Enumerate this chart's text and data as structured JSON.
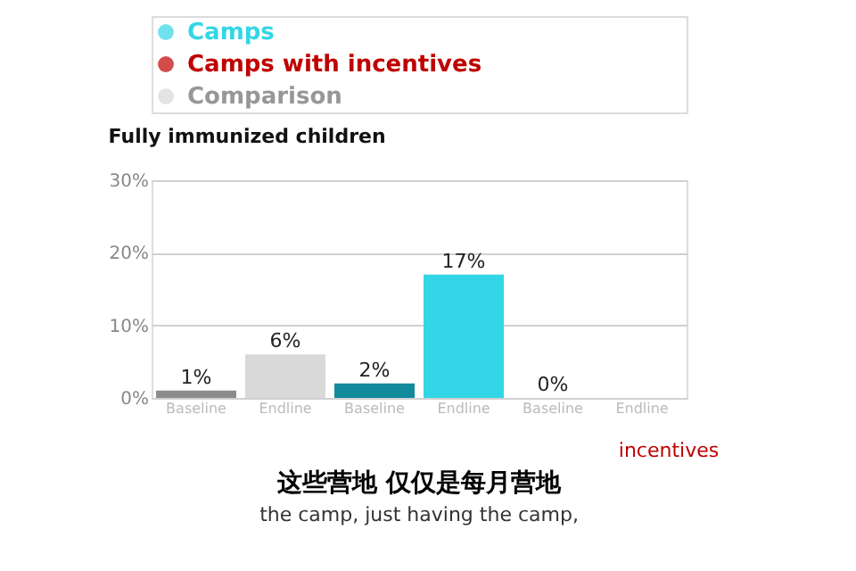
{
  "chart_data": {
    "type": "bar",
    "title": "Fully immunized children",
    "categories": [
      "Baseline",
      "Endline",
      "Baseline",
      "Endline",
      "Baseline",
      "Endline"
    ],
    "series": [
      {
        "name": "Camps",
        "color": "#33d6e6",
        "colors": [
          null,
          null,
          "#138a9c",
          "#33d6e6",
          null,
          null
        ],
        "values": [
          null,
          null,
          2,
          17,
          null,
          null
        ],
        "value_labels": [
          null,
          null,
          "2%",
          "17%",
          null,
          null
        ]
      },
      {
        "name": "Camps with incentives",
        "color": "#c00000",
        "colors": [
          null,
          null,
          null,
          null,
          "#c00000",
          null
        ],
        "values": [
          null,
          null,
          null,
          null,
          0,
          null
        ],
        "value_labels": [
          null,
          null,
          null,
          null,
          "0%",
          null
        ]
      },
      {
        "name": "Comparison",
        "color": "#d9d9d9",
        "colors": [
          "#8c8c8c",
          "#d9d9d9",
          null,
          null,
          null,
          null
        ],
        "values": [
          1,
          6,
          null,
          null,
          null,
          null
        ],
        "value_labels": [
          "1%",
          "6%",
          null,
          null,
          null,
          null
        ]
      }
    ],
    "ylim": [
      0,
      30
    ],
    "yticks": [
      {
        "value": 0,
        "label": "0%"
      },
      {
        "value": 10,
        "label": "10%"
      },
      {
        "value": 20,
        "label": "20%"
      },
      {
        "value": 30,
        "label": "30%"
      }
    ],
    "grid": "y",
    "legend": "top left",
    "annotations": [
      "incentives",
      "这些营地 仅仅是每月营地",
      "the camp, just having the camp,"
    ]
  }
}
